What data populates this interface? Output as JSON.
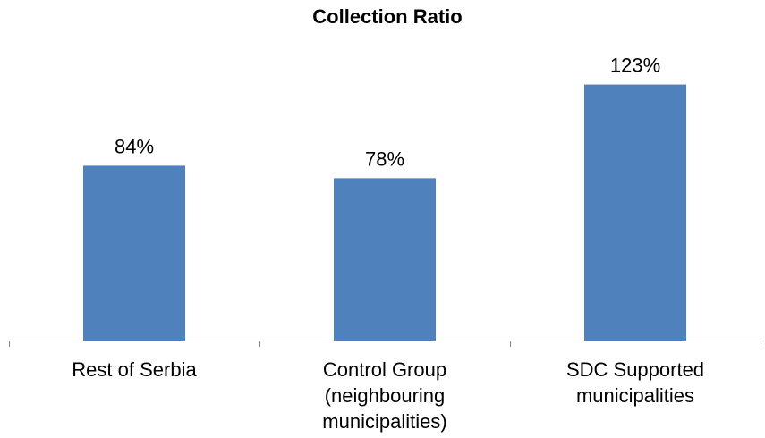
{
  "chart_data": {
    "type": "bar",
    "title": "Collection Ratio",
    "categories": [
      [
        "Rest of Serbia"
      ],
      [
        "Control Group",
        "(neighbouring",
        "municipalities)"
      ],
      [
        "SDC Supported",
        "municipalities"
      ]
    ],
    "values": [
      84,
      78,
      123
    ],
    "data_labels": [
      "84%",
      "78%",
      "123%"
    ],
    "ylim": [
      0,
      140
    ],
    "grid": false,
    "legend": "none",
    "bar_color": "#4f81bd"
  }
}
